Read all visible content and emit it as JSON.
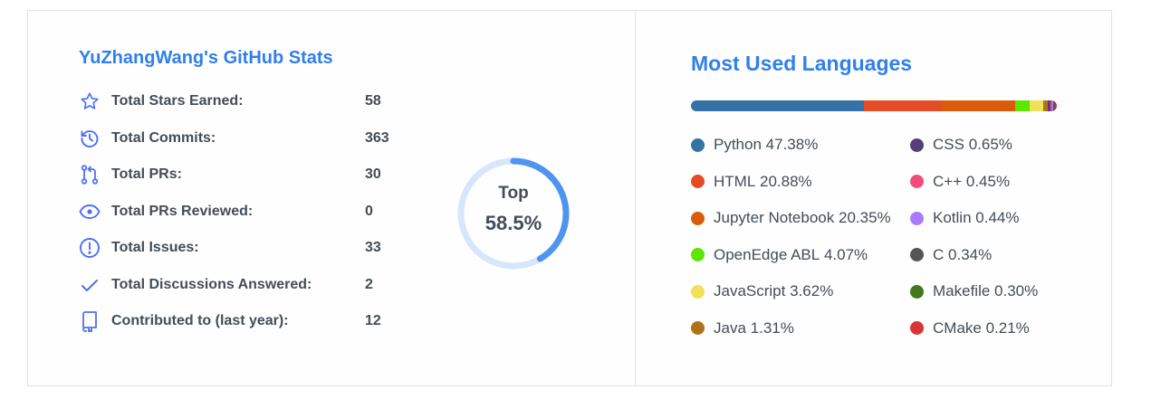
{
  "stats": {
    "title": "YuZhangWang's GitHub Stats",
    "rows": [
      {
        "label": "Total Stars Earned:",
        "value": "58",
        "icon": "star-icon"
      },
      {
        "label": "Total Commits:",
        "value": "363",
        "icon": "history-icon"
      },
      {
        "label": "Total PRs:",
        "value": "30",
        "icon": "pull-request-icon"
      },
      {
        "label": "Total PRs Reviewed:",
        "value": "0",
        "icon": "eye-icon"
      },
      {
        "label": "Total Issues:",
        "value": "33",
        "icon": "issue-icon"
      },
      {
        "label": "Total Discussions Answered:",
        "value": "2",
        "icon": "check-icon"
      },
      {
        "label": "Contributed to (last year):",
        "value": "12",
        "icon": "repo-icon"
      }
    ],
    "rank": {
      "label": "Top",
      "value": "58.5%",
      "progress": 0.415,
      "ring_color": "#4f94f0",
      "track_color": "#d7e6fb"
    }
  },
  "languages": {
    "title": "Most Used Languages",
    "items": [
      {
        "name": "Python",
        "pct": "47.38%",
        "value": 47.38,
        "color": "#3572A5"
      },
      {
        "name": "HTML",
        "pct": "20.88%",
        "value": 20.88,
        "color": "#e34c26"
      },
      {
        "name": "Jupyter Notebook",
        "pct": "20.35%",
        "value": 20.35,
        "color": "#DA5B0B"
      },
      {
        "name": "OpenEdge ABL",
        "pct": "4.07%",
        "value": 4.07,
        "color": "#5ce600"
      },
      {
        "name": "JavaScript",
        "pct": "3.62%",
        "value": 3.62,
        "color": "#f1e05a"
      },
      {
        "name": "Java",
        "pct": "1.31%",
        "value": 1.31,
        "color": "#b07219"
      },
      {
        "name": "CSS",
        "pct": "0.65%",
        "value": 0.65,
        "color": "#563d7c"
      },
      {
        "name": "C++",
        "pct": "0.45%",
        "value": 0.45,
        "color": "#f34b7d"
      },
      {
        "name": "Kotlin",
        "pct": "0.44%",
        "value": 0.44,
        "color": "#A97BFF"
      },
      {
        "name": "C",
        "pct": "0.34%",
        "value": 0.34,
        "color": "#555555"
      },
      {
        "name": "Makefile",
        "pct": "0.30%",
        "value": 0.3,
        "color": "#427819"
      },
      {
        "name": "CMake",
        "pct": "0.21%",
        "value": 0.21,
        "color": "#DA3434"
      }
    ]
  }
}
